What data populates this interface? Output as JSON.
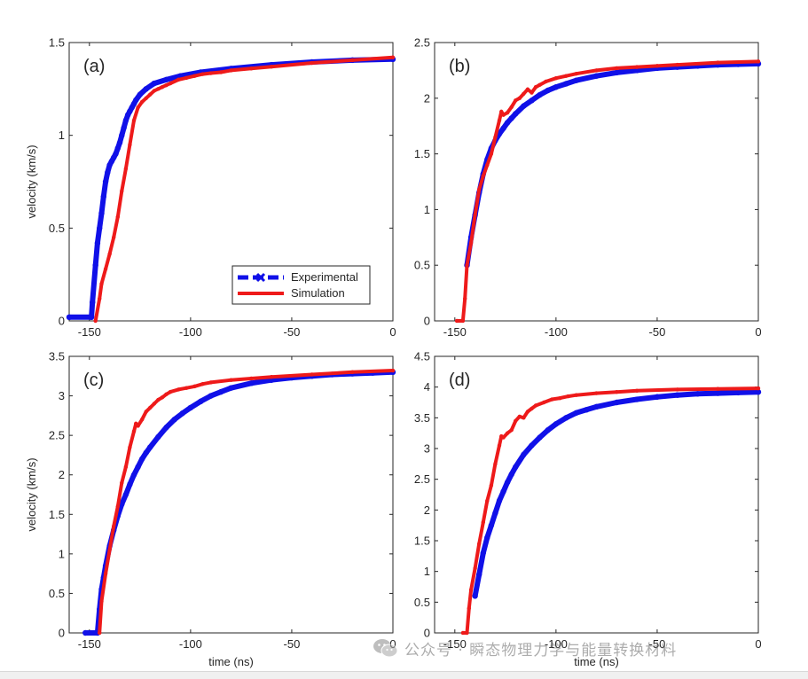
{
  "colors": {
    "experimental": "#1010e8",
    "simulation": "#ee1a1a",
    "axis": "#262626"
  },
  "legend": {
    "experimental_label": "Experimental",
    "simulation_label": "Simulation"
  },
  "watermark": {
    "text": "公众号 · 瞬态物理力学与能量转换材料",
    "icon": "wechat-icon"
  },
  "chart_data": [
    {
      "type": "line",
      "panel_label": "(a)",
      "xlabel": "",
      "ylabel": "velocity (km/s)",
      "xlim": [
        -160,
        0
      ],
      "ylim": [
        0,
        1.5
      ],
      "xticks": [
        -150,
        -100,
        -50,
        0
      ],
      "yticks": [
        0,
        0.5,
        1,
        1.5
      ],
      "xtick_labels": [
        "-150",
        "-100",
        "-50",
        "0"
      ],
      "ytick_labels": [
        "0",
        "0.5",
        "1",
        "1.5"
      ],
      "legend": "bottom-right",
      "series": [
        {
          "name": "Experimental",
          "x": [
            -160,
            -149,
            -148.5,
            -147,
            -146,
            -145,
            -144,
            -143,
            -142,
            -141,
            -140,
            -139,
            -138,
            -137,
            -136,
            -135,
            -134,
            -133,
            -132,
            -131,
            -130,
            -129,
            -128,
            -127,
            -125,
            -122,
            -118,
            -112,
            -105,
            -95,
            -80,
            -60,
            -40,
            -20,
            0
          ],
          "y": [
            0.02,
            0.02,
            0.1,
            0.3,
            0.42,
            0.5,
            0.58,
            0.67,
            0.75,
            0.8,
            0.84,
            0.86,
            0.88,
            0.9,
            0.93,
            0.96,
            1.0,
            1.04,
            1.08,
            1.11,
            1.13,
            1.15,
            1.17,
            1.19,
            1.22,
            1.25,
            1.28,
            1.3,
            1.32,
            1.34,
            1.36,
            1.38,
            1.395,
            1.405,
            1.41
          ]
        },
        {
          "name": "Simulation",
          "x": [
            -147,
            -145,
            -144,
            -142,
            -140,
            -138,
            -136,
            -134,
            -132,
            -130,
            -128,
            -126,
            -124,
            -122,
            -120,
            -118,
            -116,
            -114,
            -112,
            -110,
            -106,
            -102,
            -98,
            -94,
            -90,
            -85,
            -80,
            -70,
            -60,
            -40,
            -20,
            0
          ],
          "y": [
            0,
            0.12,
            0.2,
            0.28,
            0.36,
            0.45,
            0.56,
            0.7,
            0.82,
            0.95,
            1.08,
            1.15,
            1.18,
            1.2,
            1.22,
            1.24,
            1.25,
            1.26,
            1.27,
            1.28,
            1.3,
            1.31,
            1.32,
            1.33,
            1.335,
            1.34,
            1.35,
            1.36,
            1.37,
            1.39,
            1.405,
            1.42
          ]
        }
      ]
    },
    {
      "type": "line",
      "panel_label": "(b)",
      "xlabel": "",
      "ylabel": "",
      "xlim": [
        -160,
        0
      ],
      "ylim": [
        0,
        2.5
      ],
      "xticks": [
        -150,
        -100,
        -50,
        0
      ],
      "yticks": [
        0,
        0.5,
        1,
        1.5,
        2,
        2.5
      ],
      "xtick_labels": [
        "-150",
        "-100",
        "-50",
        "0"
      ],
      "ytick_labels": [
        "0",
        "0.5",
        "1",
        "1.5",
        "2",
        "2.5"
      ],
      "series": [
        {
          "name": "Experimental",
          "x": [
            -144,
            -142,
            -140,
            -138,
            -136,
            -134,
            -132,
            -130,
            -128,
            -126,
            -124,
            -122,
            -120,
            -116,
            -112,
            -108,
            -104,
            -100,
            -95,
            -90,
            -80,
            -70,
            -60,
            -50,
            -40,
            -30,
            -20,
            -10,
            0
          ],
          "y": [
            0.5,
            0.75,
            0.95,
            1.15,
            1.32,
            1.45,
            1.55,
            1.62,
            1.68,
            1.73,
            1.78,
            1.82,
            1.86,
            1.93,
            1.98,
            2.03,
            2.07,
            2.1,
            2.13,
            2.16,
            2.2,
            2.23,
            2.25,
            2.27,
            2.28,
            2.29,
            2.3,
            2.305,
            2.31
          ]
        },
        {
          "name": "Simulation",
          "x": [
            -149,
            -146,
            -145,
            -144,
            -142,
            -140,
            -138,
            -136,
            -134,
            -132,
            -130,
            -128,
            -127,
            -126,
            -124,
            -122,
            -120,
            -118,
            -116,
            -114,
            -112,
            -110,
            -108,
            -105,
            -100,
            -95,
            -90,
            -80,
            -70,
            -60,
            -50,
            -40,
            -20,
            0
          ],
          "y": [
            0,
            0,
            0.2,
            0.5,
            0.7,
            0.95,
            1.18,
            1.3,
            1.4,
            1.5,
            1.65,
            1.8,
            1.88,
            1.85,
            1.87,
            1.92,
            1.98,
            2.0,
            2.04,
            2.08,
            2.05,
            2.1,
            2.12,
            2.15,
            2.18,
            2.2,
            2.22,
            2.25,
            2.27,
            2.28,
            2.29,
            2.3,
            2.32,
            2.33
          ]
        }
      ]
    },
    {
      "type": "line",
      "panel_label": "(c)",
      "xlabel": "time (ns)",
      "ylabel": "velocity (km/s)",
      "xlim": [
        -160,
        0
      ],
      "ylim": [
        0,
        3.5
      ],
      "xticks": [
        -150,
        -100,
        -50,
        0
      ],
      "yticks": [
        0,
        0.5,
        1,
        1.5,
        2,
        2.5,
        3,
        3.5
      ],
      "xtick_labels": [
        "-150",
        "-100",
        "-50",
        "0"
      ],
      "ytick_labels": [
        "0",
        "0.5",
        "1",
        "1.5",
        "2",
        "2.5",
        "3",
        "3.5"
      ],
      "series": [
        {
          "name": "Experimental",
          "x": [
            -152,
            -146,
            -145,
            -144,
            -143,
            -142,
            -140,
            -138,
            -136,
            -134,
            -132,
            -130,
            -128,
            -126,
            -124,
            -122,
            -120,
            -116,
            -112,
            -108,
            -104,
            -100,
            -95,
            -90,
            -85,
            -80,
            -70,
            -60,
            -50,
            -40,
            -30,
            -20,
            -10,
            0
          ],
          "y": [
            0,
            0,
            0.3,
            0.55,
            0.7,
            0.85,
            1.1,
            1.3,
            1.48,
            1.63,
            1.75,
            1.88,
            2.0,
            2.1,
            2.2,
            2.28,
            2.35,
            2.48,
            2.6,
            2.7,
            2.78,
            2.85,
            2.93,
            3.0,
            3.05,
            3.1,
            3.16,
            3.2,
            3.23,
            3.25,
            3.27,
            3.28,
            3.29,
            3.3
          ]
        },
        {
          "name": "Simulation",
          "x": [
            -145,
            -144,
            -142,
            -140,
            -138,
            -136,
            -134,
            -132,
            -130,
            -128,
            -127,
            -126,
            -124,
            -122,
            -120,
            -118,
            -116,
            -114,
            -112,
            -110,
            -106,
            -102,
            -98,
            -94,
            -90,
            -80,
            -70,
            -60,
            -40,
            -20,
            0
          ],
          "y": [
            0,
            0.4,
            0.75,
            1.05,
            1.35,
            1.6,
            1.9,
            2.1,
            2.35,
            2.55,
            2.65,
            2.62,
            2.7,
            2.8,
            2.85,
            2.9,
            2.95,
            2.98,
            3.02,
            3.05,
            3.08,
            3.1,
            3.12,
            3.15,
            3.17,
            3.2,
            3.22,
            3.24,
            3.27,
            3.3,
            3.32
          ]
        }
      ]
    },
    {
      "type": "line",
      "panel_label": "(d)",
      "xlabel": "time (ns)",
      "ylabel": "",
      "xlim": [
        -160,
        0
      ],
      "ylim": [
        0,
        4.5
      ],
      "xticks": [
        -150,
        -100,
        -50,
        0
      ],
      "yticks": [
        0,
        0.5,
        1,
        1.5,
        2,
        2.5,
        3,
        3.5,
        4,
        4.5
      ],
      "xtick_labels": [
        "-150",
        "-100",
        "-50",
        "0"
      ],
      "ytick_labels": [
        "0",
        "0.5",
        "1",
        "1.5",
        "2",
        "2.5",
        "3",
        "3.5",
        "4",
        "4.5"
      ],
      "series": [
        {
          "name": "Experimental",
          "x": [
            -140,
            -138,
            -136,
            -134,
            -132,
            -130,
            -128,
            -126,
            -124,
            -122,
            -120,
            -116,
            -112,
            -108,
            -104,
            -100,
            -95,
            -90,
            -85,
            -80,
            -70,
            -60,
            -50,
            -40,
            -30,
            -20,
            -10,
            0
          ],
          "y": [
            0.6,
            0.95,
            1.3,
            1.55,
            1.75,
            1.95,
            2.15,
            2.3,
            2.45,
            2.58,
            2.7,
            2.9,
            3.05,
            3.18,
            3.3,
            3.4,
            3.5,
            3.58,
            3.63,
            3.68,
            3.75,
            3.8,
            3.84,
            3.87,
            3.89,
            3.9,
            3.91,
            3.92
          ]
        },
        {
          "name": "Simulation",
          "x": [
            -146,
            -144,
            -143,
            -142,
            -140,
            -138,
            -136,
            -134,
            -132,
            -130,
            -128,
            -127,
            -126,
            -124,
            -122,
            -120,
            -118,
            -116,
            -114,
            -112,
            -110,
            -106,
            -102,
            -98,
            -94,
            -90,
            -80,
            -70,
            -60,
            -40,
            -20,
            0
          ],
          "y": [
            0,
            0,
            0.4,
            0.7,
            1.05,
            1.45,
            1.8,
            2.15,
            2.4,
            2.75,
            3.05,
            3.2,
            3.18,
            3.25,
            3.3,
            3.45,
            3.52,
            3.5,
            3.6,
            3.65,
            3.7,
            3.75,
            3.8,
            3.82,
            3.85,
            3.87,
            3.9,
            3.92,
            3.94,
            3.96,
            3.97,
            3.98
          ]
        }
      ]
    }
  ]
}
